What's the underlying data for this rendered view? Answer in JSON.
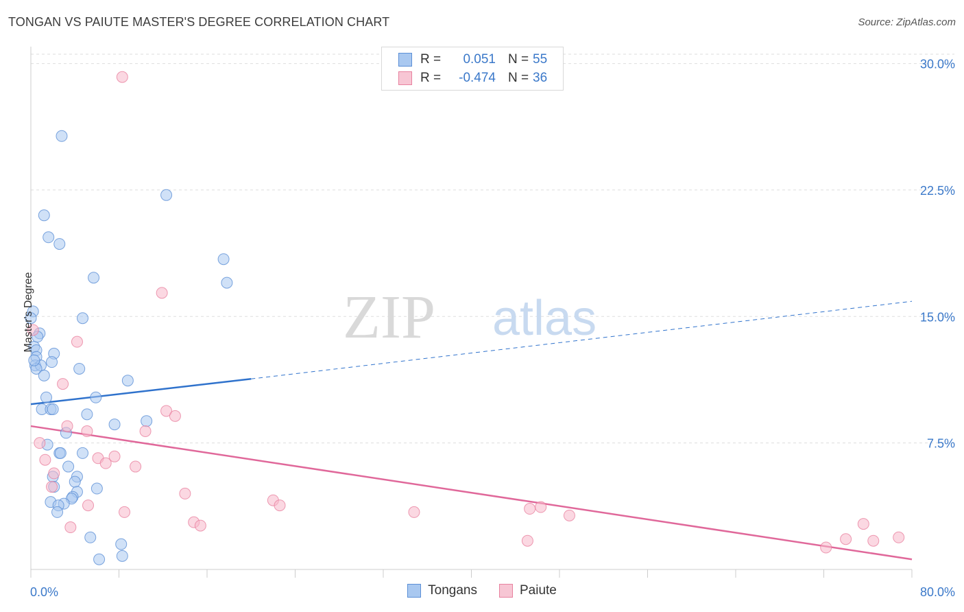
{
  "header": {
    "title": "TONGAN VS PAIUTE MASTER'S DEGREE CORRELATION CHART",
    "source": "Source: ZipAtlas.com"
  },
  "watermark": {
    "part1": "ZIP",
    "part2": "atlas"
  },
  "legend": {
    "rows": [
      {
        "r_label": "R =",
        "r_value": "0.051",
        "n_label": "N =",
        "n_value": "55"
      },
      {
        "r_label": "R =",
        "r_value": "-0.474",
        "n_label": "N =",
        "n_value": "36"
      }
    ]
  },
  "colors": {
    "tongans_fill": "#a9c8f0",
    "tongans_stroke": "#5b8fd6",
    "tongans_line": "#2f72cc",
    "paiute_fill": "#f7b8cb",
    "paiute_stroke": "#e8819f",
    "paiute_line": "#e0689a",
    "tick_label": "#3a78c9"
  },
  "chart_data": {
    "type": "scatter",
    "title": "TONGAN VS PAIUTE MASTER'S DEGREE CORRELATION CHART",
    "xlabel": "",
    "ylabel": "Master's Degree",
    "xlim": [
      0,
      80
    ],
    "ylim": [
      0,
      31
    ],
    "x_tick_labels": [
      "0.0%",
      "80.0%"
    ],
    "y_ticks": [
      7.5,
      15.0,
      22.5,
      30.0
    ],
    "y_tick_labels": [
      "7.5%",
      "15.0%",
      "22.5%",
      "30.0%"
    ],
    "grid": true,
    "legend_position": "bottom",
    "series": [
      {
        "name": "Tongans",
        "points": [
          [
            2.8,
            25.7
          ],
          [
            12.3,
            22.2
          ],
          [
            1.2,
            21.0
          ],
          [
            1.6,
            19.7
          ],
          [
            2.6,
            19.3
          ],
          [
            17.5,
            18.4
          ],
          [
            5.7,
            17.3
          ],
          [
            17.8,
            17.0
          ],
          [
            0.2,
            15.3
          ],
          [
            4.7,
            14.9
          ],
          [
            0.8,
            14.0
          ],
          [
            0.3,
            13.2
          ],
          [
            0.5,
            13.0
          ],
          [
            2.1,
            12.8
          ],
          [
            0.5,
            12.6
          ],
          [
            1.9,
            12.3
          ],
          [
            0.4,
            12.1
          ],
          [
            0.9,
            12.1
          ],
          [
            0.5,
            11.9
          ],
          [
            4.4,
            11.9
          ],
          [
            1.2,
            11.5
          ],
          [
            8.8,
            11.2
          ],
          [
            1.4,
            10.2
          ],
          [
            5.9,
            10.2
          ],
          [
            1.0,
            9.5
          ],
          [
            1.8,
            9.5
          ],
          [
            2.0,
            9.5
          ],
          [
            5.1,
            9.2
          ],
          [
            10.5,
            8.8
          ],
          [
            7.6,
            8.6
          ],
          [
            3.2,
            8.1
          ],
          [
            1.5,
            7.4
          ],
          [
            2.6,
            6.9
          ],
          [
            2.7,
            6.9
          ],
          [
            4.7,
            6.9
          ],
          [
            3.4,
            6.1
          ],
          [
            2.0,
            5.5
          ],
          [
            4.2,
            5.5
          ],
          [
            4.0,
            5.2
          ],
          [
            2.1,
            4.9
          ],
          [
            6.0,
            4.8
          ],
          [
            4.2,
            4.6
          ],
          [
            3.8,
            4.3
          ],
          [
            3.7,
            4.2
          ],
          [
            1.8,
            4.0
          ],
          [
            3.0,
            3.9
          ],
          [
            2.5,
            3.8
          ],
          [
            2.4,
            3.4
          ],
          [
            5.4,
            1.9
          ],
          [
            8.2,
            1.5
          ],
          [
            6.2,
            0.6
          ],
          [
            8.3,
            0.8
          ],
          [
            0.0,
            14.9
          ],
          [
            0.6,
            13.8
          ],
          [
            0.3,
            12.4
          ]
        ]
      },
      {
        "name": "Paiute",
        "points": [
          [
            8.3,
            29.2
          ],
          [
            11.9,
            16.4
          ],
          [
            0.2,
            14.2
          ],
          [
            4.2,
            13.5
          ],
          [
            2.9,
            11.0
          ],
          [
            12.3,
            9.4
          ],
          [
            13.1,
            9.1
          ],
          [
            3.3,
            8.5
          ],
          [
            5.1,
            8.2
          ],
          [
            10.4,
            8.2
          ],
          [
            0.8,
            7.5
          ],
          [
            1.3,
            6.5
          ],
          [
            6.1,
            6.6
          ],
          [
            7.6,
            6.7
          ],
          [
            6.8,
            6.3
          ],
          [
            9.5,
            6.1
          ],
          [
            2.1,
            5.7
          ],
          [
            1.9,
            4.9
          ],
          [
            14.0,
            4.5
          ],
          [
            22.0,
            4.1
          ],
          [
            22.6,
            3.8
          ],
          [
            5.2,
            3.8
          ],
          [
            34.8,
            3.4
          ],
          [
            8.5,
            3.4
          ],
          [
            45.3,
            3.6
          ],
          [
            46.3,
            3.7
          ],
          [
            48.9,
            3.2
          ],
          [
            14.8,
            2.8
          ],
          [
            15.4,
            2.6
          ],
          [
            3.6,
            2.5
          ],
          [
            45.1,
            1.7
          ],
          [
            75.6,
            2.7
          ],
          [
            74.0,
            1.8
          ],
          [
            76.5,
            1.7
          ],
          [
            78.8,
            1.9
          ],
          [
            72.2,
            1.3
          ]
        ]
      }
    ],
    "trend_lines": [
      {
        "series": "Tongans",
        "x0": 0,
        "y0": 9.8,
        "x1": 20,
        "y1": 11.3,
        "dashed_to": {
          "x": 80,
          "y": 15.9
        }
      },
      {
        "series": "Paiute",
        "x0": 0,
        "y0": 8.5,
        "x1": 80,
        "y1": 0.6
      }
    ]
  },
  "bottom_legend": {
    "items": [
      {
        "label": "Tongans"
      },
      {
        "label": "Paiute"
      }
    ]
  }
}
